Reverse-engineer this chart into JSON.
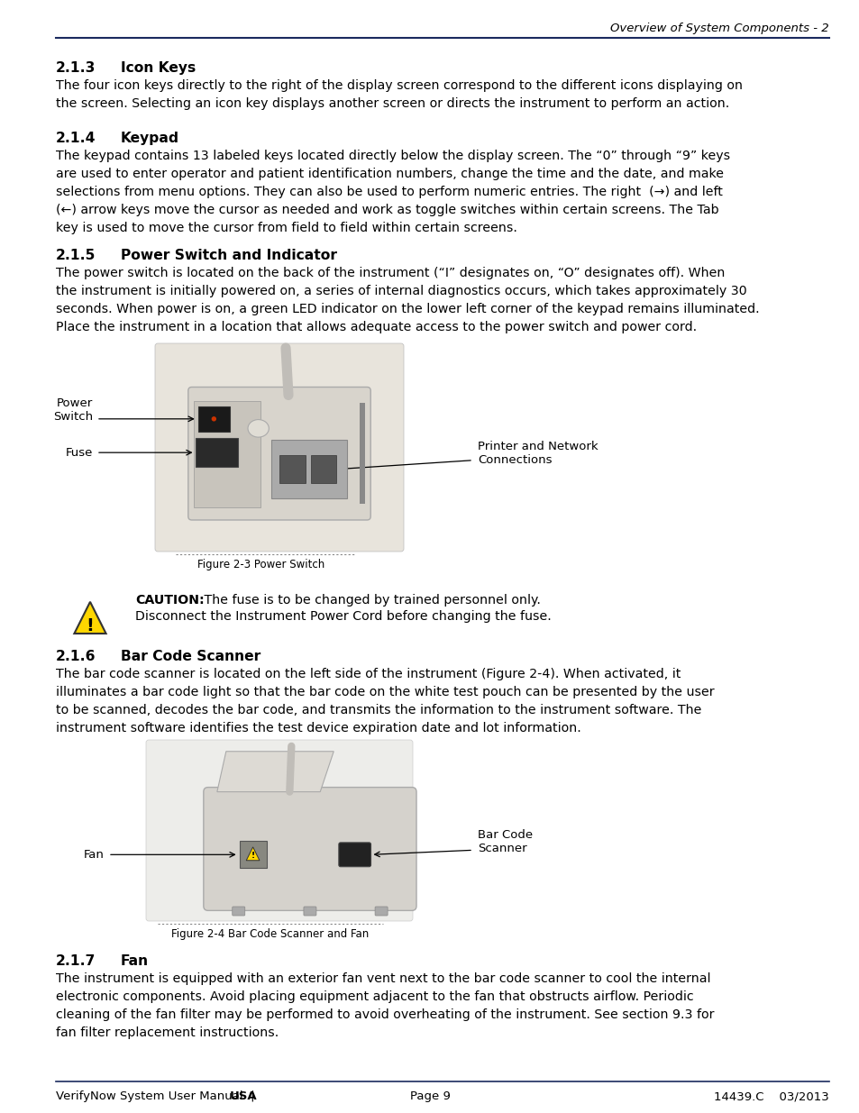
{
  "header_right": "Overview of System Components - 2",
  "header_line_color": "#1a2a5e",
  "sections": [
    {
      "heading_num": "2.1.3",
      "heading_title": "Icon Keys",
      "body": "The four icon keys directly to the right of the display screen correspond to the different icons displaying on\nthe screen. Selecting an icon key displays another screen or directs the instrument to perform an action."
    },
    {
      "heading_num": "2.1.4",
      "heading_title": "Keypad",
      "body": "The keypad contains 13 labeled keys located directly below the display screen. The “0” through “9” keys\nare used to enter operator and patient identification numbers, change the time and the date, and make\nselections from menu options. They can also be used to perform numeric entries. The right  (→) and left\n(←) arrow keys move the cursor as needed and work as toggle switches within certain screens. The Tab\nkey is used to move the cursor from field to field within certain screens."
    },
    {
      "heading_num": "2.1.5",
      "heading_title": "Power Switch and Indicator",
      "body": "The power switch is located on the back of the instrument (“I” designates on, “O” designates off). When\nthe instrument is initially powered on, a series of internal diagnostics occurs, which takes approximately 30\nseconds. When power is on, a green LED indicator on the lower left corner of the keypad remains illuminated.\nPlace the instrument in a location that allows adequate access to the power switch and power cord."
    },
    {
      "heading_num": "2.1.6",
      "heading_title": "Bar Code Scanner",
      "body": "The bar code scanner is located on the left side of the instrument (Figure 2-4). When activated, it\nilluminates a bar code light so that the bar code on the white test pouch can be presented by the user\nto be scanned, decodes the bar code, and transmits the information to the instrument software. The\ninstrument software identifies the test device expiration date and lot information."
    },
    {
      "heading_num": "2.1.7",
      "heading_title": "Fan",
      "body": "The instrument is equipped with an exterior fan vent next to the bar code scanner to cool the internal\nelectronic components. Avoid placing equipment adjacent to the fan that obstructs airflow. Periodic\ncleaning of the fan filter may be performed to avoid overheating of the instrument. See section 9.3 for\nfan filter replacement instructions."
    }
  ],
  "fig1_caption": "Figure 2-3 Power Switch",
  "fig2_caption": "Figure 2-4 Bar Code Scanner and Fan",
  "caution_bold": "CAUTION:",
  "caution_line1": " The fuse is to be changed by trained personnel only.",
  "caution_line2": "Disconnect the Instrument Power Cord before changing the fuse.",
  "footer_left1": "VerifyNow System User Manual  | ",
  "footer_left2": "USA",
  "footer_center": "Page 9",
  "footer_right": "14439.C    03/2013",
  "footer_line_color": "#1a2a5e",
  "bg_color": "#ffffff",
  "text_color": "#000000",
  "body_fontsize": 10.2,
  "heading_fontsize": 11.2,
  "caption_fontsize": 8.5,
  "footer_fontsize": 9.5,
  "header_fontsize": 9.5
}
